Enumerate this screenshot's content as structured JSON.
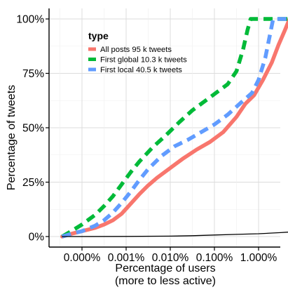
{
  "chart_data": {
    "type": "line",
    "xlabel": "Percentage of users",
    "xlabel2": "(more to less active)",
    "ylabel": "Percentage of tweets",
    "y_ticks": [
      "0%",
      "25%",
      "50%",
      "75%",
      "100%"
    ],
    "x_ticks": [
      "0.000%",
      "0.001%",
      "0.010%",
      "0.100%",
      "1.000%"
    ],
    "y_range": [
      0,
      100
    ],
    "x_scale": "log",
    "grid": true,
    "legend_title": "type",
    "legend_position": "top-left inside plot",
    "series": [
      {
        "name": "All posts 95 k tweets",
        "color": "#f8766d",
        "dash": "solid",
        "points": [
          [
            -0.45,
            0
          ],
          [
            -0.2,
            1.5
          ],
          [
            0,
            2.5
          ],
          [
            0.3,
            4
          ],
          [
            0.5,
            5.5
          ],
          [
            0.7,
            7.5
          ],
          [
            0.9,
            10.5
          ],
          [
            1.1,
            15
          ],
          [
            1.3,
            19.5
          ],
          [
            1.5,
            23.5
          ],
          [
            1.7,
            27
          ],
          [
            2,
            31.5
          ],
          [
            2.3,
            36
          ],
          [
            2.6,
            40
          ],
          [
            2.9,
            43.5
          ],
          [
            3.2,
            48
          ],
          [
            3.5,
            55
          ],
          [
            3.7,
            61
          ],
          [
            3.9,
            65
          ],
          [
            4.1,
            72
          ],
          [
            4.3,
            80
          ],
          [
            4.45,
            88
          ],
          [
            4.6,
            95
          ],
          [
            4.7,
            100
          ],
          [
            4.85,
            100
          ]
        ]
      },
      {
        "name": "First global 10.3 k tweets",
        "color": "#00ba38",
        "dash": "dashed",
        "points": [
          [
            -0.45,
            0
          ],
          [
            -0.2,
            3
          ],
          [
            0,
            5.5
          ],
          [
            0.3,
            10
          ],
          [
            0.5,
            14
          ],
          [
            0.7,
            18.5
          ],
          [
            0.9,
            24
          ],
          [
            1.1,
            29.5
          ],
          [
            1.3,
            34.5
          ],
          [
            1.6,
            41
          ],
          [
            1.9,
            46.5
          ],
          [
            2.2,
            52.5
          ],
          [
            2.5,
            58
          ],
          [
            2.8,
            62.5
          ],
          [
            3.1,
            67
          ],
          [
            3.3,
            70
          ],
          [
            3.5,
            76
          ],
          [
            3.65,
            86
          ],
          [
            3.75,
            95
          ],
          [
            3.82,
            100
          ],
          [
            4.85,
            100
          ]
        ]
      },
      {
        "name": "First local 40.5 k tweets",
        "color": "#619cff",
        "dash": "dashed",
        "points": [
          [
            -0.45,
            0
          ],
          [
            -0.2,
            1.5
          ],
          [
            0,
            2.5
          ],
          [
            0.3,
            5
          ],
          [
            0.5,
            7.5
          ],
          [
            0.7,
            11
          ],
          [
            0.9,
            15.5
          ],
          [
            1.1,
            20.5
          ],
          [
            1.3,
            26
          ],
          [
            1.5,
            31
          ],
          [
            1.8,
            37
          ],
          [
            2.1,
            41.5
          ],
          [
            2.4,
            44.5
          ],
          [
            2.7,
            48
          ],
          [
            3,
            51.5
          ],
          [
            3.3,
            56
          ],
          [
            3.6,
            61.5
          ],
          [
            3.85,
            66
          ],
          [
            4,
            72
          ],
          [
            4.15,
            82
          ],
          [
            4.25,
            92
          ],
          [
            4.33,
            100
          ],
          [
            4.85,
            100
          ]
        ]
      },
      {
        "name": "",
        "color": "#000000",
        "dash": "solid",
        "points": [
          [
            -0.45,
            0
          ],
          [
            1,
            0.05
          ],
          [
            2,
            0.2
          ],
          [
            2.5,
            0.4
          ],
          [
            3,
            0.7
          ],
          [
            3.5,
            1
          ],
          [
            4,
            1.3
          ],
          [
            4.5,
            1.8
          ],
          [
            4.85,
            2.3
          ]
        ]
      }
    ]
  }
}
